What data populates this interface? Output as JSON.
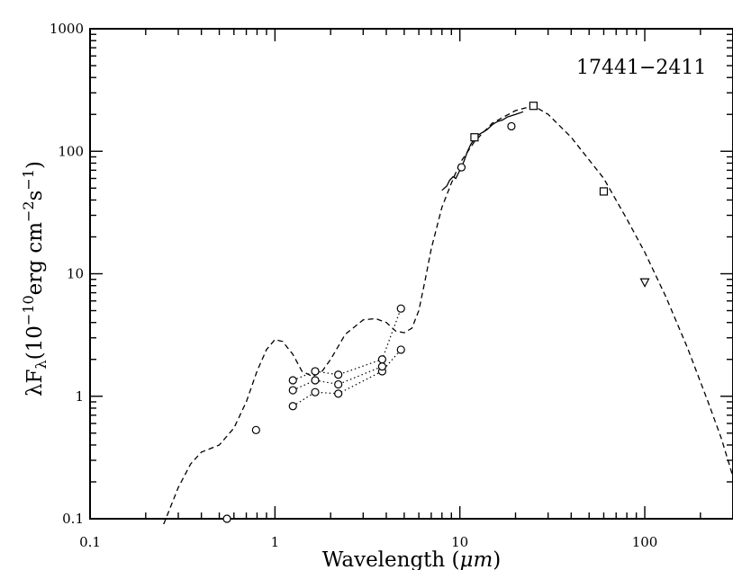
{
  "chart_data": {
    "type": "scatter",
    "title": "",
    "annotation": "17441−2411",
    "xlabel_main": "Wavelength (",
    "xlabel_unit": "μm",
    "xlabel_close": ")",
    "ylabel": {
      "lam": "λ",
      "F": "F",
      "sub": "λ",
      "open": "(10",
      "exp1": "−10",
      "units": "erg cm",
      "exp2": "−2",
      "s": "s",
      "exp3": "−1",
      "close": ")"
    },
    "x_scale": "log",
    "y_scale": "log",
    "xlim": [
      0.1,
      300
    ],
    "ylim": [
      0.1,
      1000
    ],
    "x_ticks": [
      {
        "value": 0.1,
        "label": "0.1"
      },
      {
        "value": 1,
        "label": "1"
      },
      {
        "value": 10,
        "label": "10"
      },
      {
        "value": 100,
        "label": "100"
      }
    ],
    "y_ticks": [
      {
        "value": 0.1,
        "label": "0.1"
      },
      {
        "value": 1,
        "label": "1"
      },
      {
        "value": 10,
        "label": "10"
      },
      {
        "value": 100,
        "label": "100"
      },
      {
        "value": 1000,
        "label": "1000"
      }
    ],
    "model_curve": {
      "style": "dashed",
      "points": [
        [
          0.25,
          0.09
        ],
        [
          0.3,
          0.18
        ],
        [
          0.35,
          0.28
        ],
        [
          0.4,
          0.35
        ],
        [
          0.5,
          0.4
        ],
        [
          0.6,
          0.55
        ],
        [
          0.7,
          0.9
        ],
        [
          0.8,
          1.6
        ],
        [
          0.9,
          2.4
        ],
        [
          1.0,
          2.9
        ],
        [
          1.1,
          2.8
        ],
        [
          1.25,
          2.2
        ],
        [
          1.4,
          1.6
        ],
        [
          1.6,
          1.45
        ],
        [
          1.8,
          1.6
        ],
        [
          2.0,
          2.0
        ],
        [
          2.4,
          3.2
        ],
        [
          3.0,
          4.2
        ],
        [
          3.5,
          4.3
        ],
        [
          4.0,
          4.0
        ],
        [
          4.5,
          3.4
        ],
        [
          5.0,
          3.3
        ],
        [
          5.5,
          3.6
        ],
        [
          6.0,
          5.0
        ],
        [
          6.5,
          9.0
        ],
        [
          7.0,
          16
        ],
        [
          8.0,
          35
        ],
        [
          9.0,
          55
        ],
        [
          10.0,
          80
        ],
        [
          12.0,
          120
        ],
        [
          15.0,
          170
        ],
        [
          20.0,
          215
        ],
        [
          25.0,
          235
        ],
        [
          30.0,
          200
        ],
        [
          40.0,
          130
        ],
        [
          60.0,
          60
        ],
        [
          80.0,
          28
        ],
        [
          100.0,
          15
        ],
        [
          130.0,
          6.5
        ],
        [
          170.0,
          2.5
        ],
        [
          220.0,
          0.9
        ],
        [
          260.0,
          0.45
        ],
        [
          300.0,
          0.22
        ]
      ]
    },
    "spectrum": {
      "style": "solid",
      "points": [
        [
          8.0,
          48
        ],
        [
          8.5,
          52
        ],
        [
          8.8,
          58
        ],
        [
          9.2,
          62
        ],
        [
          9.5,
          60
        ],
        [
          10.0,
          70
        ],
        [
          10.5,
          82
        ],
        [
          11.0,
          100
        ],
        [
          11.5,
          115
        ],
        [
          12.0,
          125
        ],
        [
          12.5,
          135
        ],
        [
          13.0,
          140
        ],
        [
          14.0,
          150
        ],
        [
          15.0,
          165
        ],
        [
          16.0,
          175
        ],
        [
          17.0,
          180
        ],
        [
          18.0,
          190
        ],
        [
          19.0,
          195
        ],
        [
          20.0,
          200
        ],
        [
          21.0,
          205
        ],
        [
          22.0,
          210
        ]
      ]
    },
    "photometry_circles": [
      [
        0.55,
        0.1
      ],
      [
        0.79,
        0.53
      ],
      [
        1.25,
        0.83
      ],
      [
        1.25,
        1.12
      ],
      [
        1.25,
        1.35
      ],
      [
        1.65,
        1.08
      ],
      [
        1.65,
        1.35
      ],
      [
        1.65,
        1.6
      ],
      [
        2.2,
        1.05
      ],
      [
        2.2,
        1.25
      ],
      [
        2.2,
        1.5
      ],
      [
        3.8,
        1.6
      ],
      [
        3.8,
        1.75
      ],
      [
        3.8,
        2.0
      ],
      [
        4.8,
        2.4
      ],
      [
        4.8,
        5.2
      ],
      [
        10.2,
        74
      ],
      [
        19.0,
        160
      ]
    ],
    "epoch_lines": [
      {
        "style": "dotted",
        "points": [
          [
            1.25,
            0.83
          ],
          [
            1.65,
            1.08
          ],
          [
            2.2,
            1.05
          ],
          [
            3.8,
            1.6
          ],
          [
            4.8,
            2.4
          ]
        ]
      },
      {
        "style": "dotted",
        "points": [
          [
            1.25,
            1.12
          ],
          [
            1.65,
            1.35
          ],
          [
            2.2,
            1.25
          ],
          [
            3.8,
            1.75
          ]
        ]
      },
      {
        "style": "dotted",
        "points": [
          [
            1.25,
            1.35
          ],
          [
            1.65,
            1.6
          ],
          [
            2.2,
            1.5
          ],
          [
            3.8,
            2.0
          ],
          [
            4.8,
            5.2
          ]
        ]
      }
    ],
    "photometry_squares": [
      [
        12.0,
        130
      ],
      [
        25.0,
        235
      ],
      [
        60.0,
        47
      ]
    ],
    "upper_limits": [
      [
        100.0,
        8.5
      ]
    ]
  }
}
